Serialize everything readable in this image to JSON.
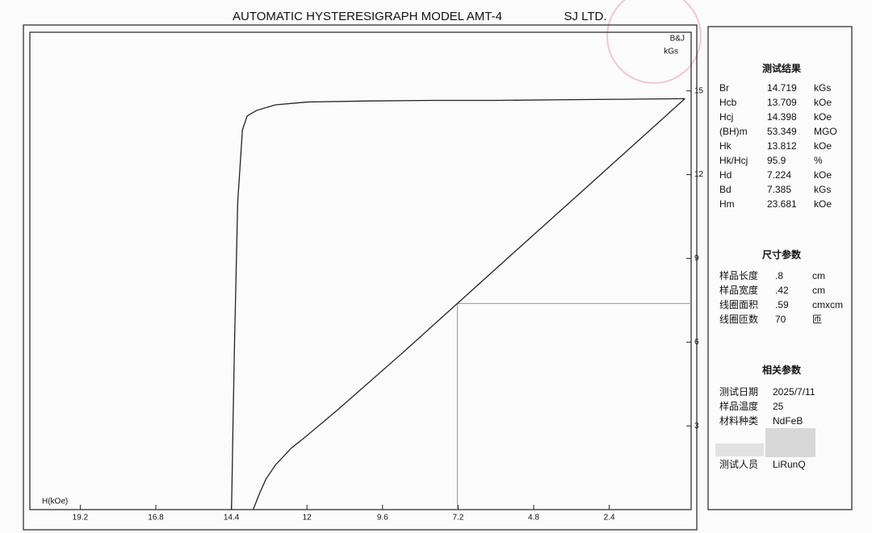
{
  "chart_data": {
    "type": "line",
    "title": "AUTOMATIC HYSTERESIGRAPH MODEL AMT-4",
    "subtitle": "SJ LTD.",
    "x_label": "H(kOe)",
    "y_label": "B&J",
    "y_unit": "kGs",
    "xlim": [
      20.8,
      -0.2
    ],
    "ylim": [
      0,
      17.1
    ],
    "xticks": [
      19.2,
      16.8,
      14.4,
      12,
      9.6,
      7.2,
      4.8,
      2.4
    ],
    "yticks": [
      3,
      6,
      9,
      12,
      15
    ],
    "series": [
      {
        "color": "#222222",
        "x": [
          0,
          2,
          4,
          6,
          8,
          10,
          12,
          13,
          13.6,
          13.9,
          14.05,
          14.2,
          14.3,
          14.35,
          14.38,
          14.398
        ],
        "values": [
          14.72,
          14.7,
          14.68,
          14.66,
          14.66,
          14.64,
          14.6,
          14.5,
          14.3,
          14.1,
          13.6,
          11,
          6,
          3,
          1,
          0
        ]
      },
      {
        "color": "#222222",
        "x": [
          0,
          3,
          6,
          7.224,
          9,
          11,
          12,
          12.5,
          13,
          13.3,
          13.5,
          13.709
        ],
        "values": [
          14.72,
          11.67,
          8.63,
          7.385,
          5.58,
          3.6,
          2.65,
          2.2,
          1.6,
          1.1,
          0.6,
          0
        ]
      }
    ],
    "crosshair": {
      "x": 7.224,
      "y": 7.385
    }
  },
  "panel": {
    "sections": [
      {
        "title": "测试结果",
        "rows": [
          [
            "Br",
            "14.719",
            "kGs"
          ],
          [
            "Hcb",
            "13.709",
            "kOe"
          ],
          [
            "Hcj",
            "14.398",
            "kOe"
          ],
          [
            "(BH)m",
            "53.349",
            "MGO"
          ],
          [
            "Hk",
            "13.812",
            "kOe"
          ],
          [
            "Hk/Hcj",
            "95.9",
            "%"
          ],
          [
            "Hd",
            "7.224",
            "kOe"
          ],
          [
            "Bd",
            "7.385",
            "kGs"
          ],
          [
            "Hm",
            "23.681",
            "kOe"
          ]
        ]
      },
      {
        "title": "尺寸参数",
        "rows": [
          [
            "样品长度",
            ".8",
            "cm"
          ],
          [
            "样品宽度",
            ".42",
            "cm"
          ],
          [
            "线圈面积",
            ".59",
            "cmxcm"
          ],
          [
            "线圈匝数",
            "70",
            "匝"
          ]
        ]
      },
      {
        "title": "相关参数",
        "rows": [
          [
            "测试日期",
            "2025/7/11"
          ],
          [
            "样品温度",
            "25"
          ],
          [
            "材料种类",
            "NdFeB"
          ],
          [
            "测试人员",
            "LiRunQ"
          ]
        ]
      }
    ]
  }
}
